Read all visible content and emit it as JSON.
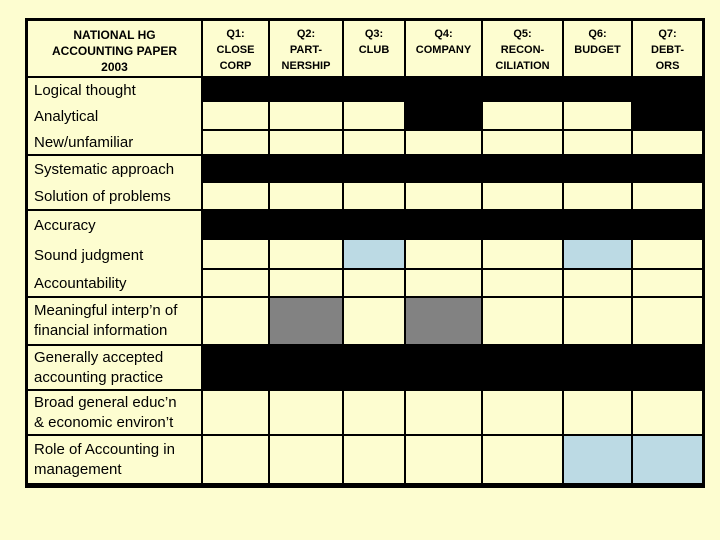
{
  "table": {
    "title_lines": [
      "NATIONAL HG",
      "ACCOUNTING PAPER",
      "2003"
    ],
    "column_headers": [
      {
        "id": "Q1",
        "lines": [
          "Q1:",
          "CLOSE",
          "CORP"
        ]
      },
      {
        "id": "Q2",
        "lines": [
          "Q2:",
          "PART-",
          "NERSHIP"
        ]
      },
      {
        "id": "Q3",
        "lines": [
          "Q3:",
          "CLUB"
        ]
      },
      {
        "id": "Q4",
        "lines": [
          "Q4:",
          "COMPANY"
        ]
      },
      {
        "id": "Q5",
        "lines": [
          "Q5:",
          "RECON-",
          "CILIATION"
        ]
      },
      {
        "id": "Q6",
        "lines": [
          "Q6:",
          "BUDGET"
        ]
      },
      {
        "id": "Q7",
        "lines": [
          "Q7:",
          "DEBT-",
          "ORS"
        ]
      }
    ],
    "cell_colors": {
      "cream": "#FDFDD0",
      "black": "#000000",
      "gray": "#828282",
      "blue": "#BCDAE4"
    },
    "groups": [
      {
        "label_lines": [
          "Logical thought",
          "Analytical",
          "New/unfamiliar"
        ],
        "rows": [
          [
            "black",
            "black",
            "black",
            "black",
            "black",
            "black",
            "black"
          ],
          [
            "cream",
            "cream",
            "cream",
            "black",
            "cream",
            "cream",
            "black"
          ],
          [
            "cream",
            "cream",
            "cream",
            "cream",
            "cream",
            "cream",
            "cream"
          ]
        ]
      },
      {
        "label_lines": [
          "Systematic approach",
          "Solution of problems"
        ],
        "rows": [
          [
            "black",
            "black",
            "black",
            "black",
            "black",
            "black",
            "black"
          ],
          [
            "cream",
            "cream",
            "cream",
            "cream",
            "cream",
            "cream",
            "cream"
          ]
        ]
      },
      {
        "label_lines": [
          "Accuracy",
          "Sound judgment",
          "Accountability"
        ],
        "rows": [
          [
            "black",
            "black",
            "black",
            "black",
            "black",
            "black",
            "black"
          ],
          [
            "cream",
            "cream",
            "blue",
            "cream",
            "cream",
            "blue",
            "cream"
          ],
          [
            "cream",
            "cream",
            "cream",
            "cream",
            "cream",
            "cream",
            "cream"
          ]
        ]
      },
      {
        "label_lines": [
          "Meaningful interp’n of",
          "financial information"
        ],
        "rows": [
          [
            "cream",
            "gray",
            "cream",
            "gray",
            "cream",
            "cream",
            "cream"
          ]
        ]
      },
      {
        "label_lines": [
          "Generally accepted",
          "accounting practice"
        ],
        "rows": [
          [
            "black",
            "black",
            "black",
            "black",
            "black",
            "black",
            "black"
          ]
        ]
      },
      {
        "label_lines": [
          "Broad general educ’n",
          "& economic environ’t"
        ],
        "rows": [
          [
            "cream",
            "cream",
            "cream",
            "cream",
            "cream",
            "cream",
            "cream"
          ]
        ]
      },
      {
        "label_lines": [
          "Role of Accounting in",
          "management"
        ],
        "rows": [
          [
            "cream",
            "cream",
            "cream",
            "cream",
            "cream",
            "blue",
            "blue"
          ]
        ]
      }
    ]
  }
}
